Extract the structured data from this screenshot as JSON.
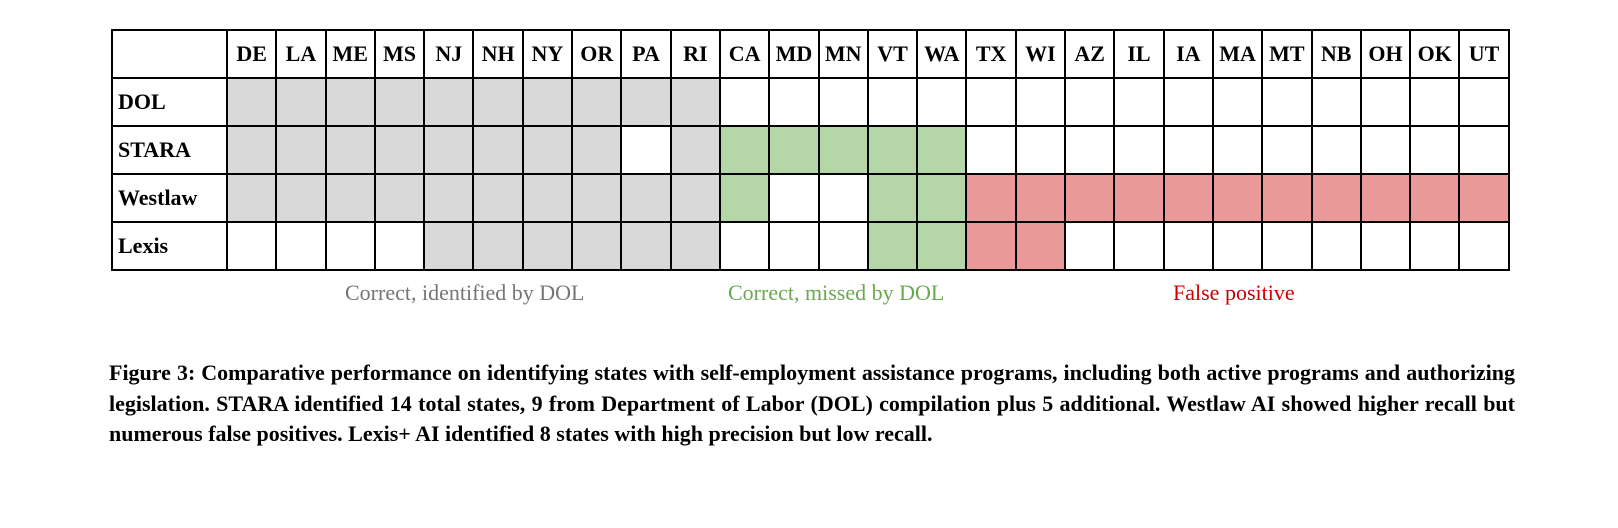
{
  "colors": {
    "dol": "#d9d9d9",
    "missed": "#b5d7a8",
    "false_positive": "#ea9999",
    "empty": "#ffffff"
  },
  "columns": [
    "DE",
    "LA",
    "ME",
    "MS",
    "NJ",
    "NH",
    "NY",
    "OR",
    "PA",
    "RI",
    "CA",
    "MD",
    "MN",
    "VT",
    "WA",
    "TX",
    "WI",
    "AZ",
    "IL",
    "IA",
    "MA",
    "MT",
    "NB",
    "OH",
    "OK",
    "UT"
  ],
  "rows": [
    {
      "label": "DOL",
      "cells": [
        "g",
        "g",
        "g",
        "g",
        "g",
        "g",
        "g",
        "g",
        "g",
        "g",
        "w",
        "w",
        "w",
        "w",
        "w",
        "w",
        "w",
        "w",
        "w",
        "w",
        "w",
        "w",
        "w",
        "w",
        "w",
        "w"
      ]
    },
    {
      "label": "STARA",
      "cells": [
        "g",
        "g",
        "g",
        "g",
        "g",
        "g",
        "g",
        "g",
        "w",
        "g",
        "v",
        "v",
        "v",
        "v",
        "v",
        "w",
        "w",
        "w",
        "w",
        "w",
        "w",
        "w",
        "w",
        "w",
        "w",
        "w"
      ]
    },
    {
      "label": "Westlaw",
      "cells": [
        "g",
        "g",
        "g",
        "g",
        "g",
        "g",
        "g",
        "g",
        "g",
        "g",
        "v",
        "w",
        "w",
        "v",
        "v",
        "r",
        "r",
        "r",
        "r",
        "r",
        "r",
        "r",
        "r",
        "r",
        "r",
        "r"
      ]
    },
    {
      "label": "Lexis",
      "cells": [
        "w",
        "w",
        "w",
        "w",
        "g",
        "g",
        "g",
        "g",
        "g",
        "g",
        "w",
        "w",
        "w",
        "v",
        "v",
        "r",
        "r",
        "w",
        "w",
        "w",
        "w",
        "w",
        "w",
        "w",
        "w",
        "w"
      ]
    }
  ],
  "legend": {
    "dol": {
      "text": "Correct, identified by DOL",
      "color": "#757575"
    },
    "missed": {
      "text": "Correct, missed by DOL",
      "color": "#6aa84f"
    },
    "false_positive": {
      "text": "False positive",
      "color": "#cc0000"
    }
  },
  "caption": "Figure 3: Comparative performance on identifying states with self-employment assistance programs, including both active programs and authorizing legislation. STARA identified 14 total states, 9 from Department of Labor (DOL) compilation plus 5 additional. Westlaw AI showed higher recall but numerous false positives. Lexis+ AI identified 8 states with high precision but low recall."
}
